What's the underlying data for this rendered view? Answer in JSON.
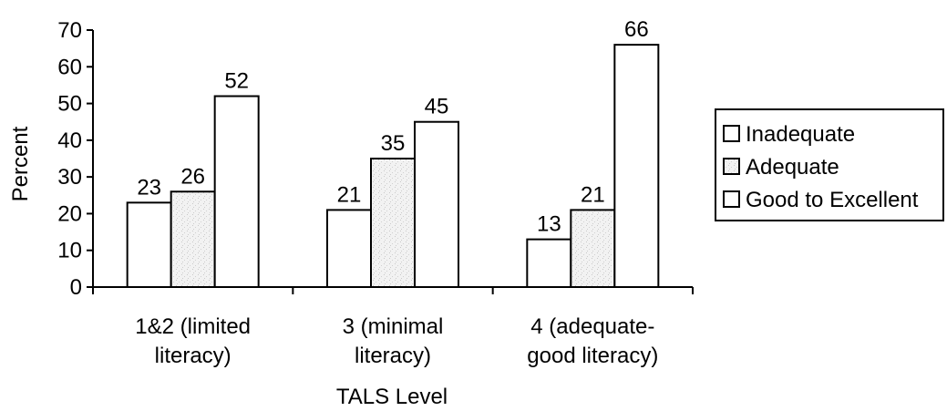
{
  "chart_data": {
    "type": "bar",
    "title": "",
    "xlabel": "TALS Level",
    "ylabel": "Percent",
    "ylim": [
      0,
      70
    ],
    "yticks": [
      0,
      10,
      20,
      30,
      40,
      50,
      60,
      70
    ],
    "categories": [
      [
        "1&2 (limited",
        "literacy)"
      ],
      [
        "3 (minimal",
        "literacy)"
      ],
      [
        "4 (adequate-",
        "good literacy)"
      ]
    ],
    "series": [
      {
        "name": "Inadequate",
        "values": [
          23,
          21,
          13
        ],
        "color": "#ffffff"
      },
      {
        "name": "Adequate",
        "values": [
          26,
          35,
          21
        ],
        "color": "#eeeeee"
      },
      {
        "name": "Good to Excellent",
        "values": [
          52,
          45,
          66
        ],
        "color": "#ffffff"
      }
    ],
    "data_labels": true,
    "grid": false,
    "legend_position": "right"
  }
}
